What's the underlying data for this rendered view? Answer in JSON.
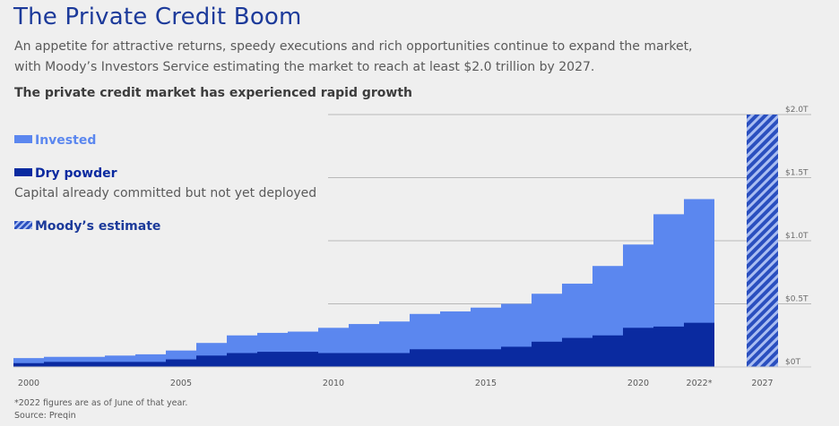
{
  "title": "The Private Credit Boom",
  "subtitle_line1": "An appetite for attractive returns, speedy executions and rich opportunities continue to expand the market,",
  "subtitle_line2": "with Moody’s Investors Service estimating the market to reach at least $2.0 trillion by 2027.",
  "heading": "The private credit market has experienced rapid growth",
  "legend": {
    "invested": "Invested",
    "dry_powder": "Dry powder",
    "dry_powder_note": "Capital already committed but not yet deployed",
    "estimate": "Moody’s estimate"
  },
  "footnote": "*2022 figures are as of June of that year.",
  "source": "Source: Preqin",
  "colors": {
    "invested": "#5b87ef",
    "dry_powder": "#0a2aa0",
    "estimate": "#2a4fbf",
    "title": "#1c3a9a"
  },
  "chart_data": {
    "type": "area",
    "x": [
      "2000",
      "2001",
      "2002",
      "2003",
      "2004",
      "2005",
      "2006",
      "2007",
      "2008",
      "2009",
      "2010",
      "2011",
      "2012",
      "2013",
      "2014",
      "2015",
      "2016",
      "2017",
      "2018",
      "2019",
      "2020",
      "2021",
      "2022*"
    ],
    "series": [
      {
        "name": "Invested",
        "values": [
          0.07,
          0.08,
          0.08,
          0.09,
          0.1,
          0.13,
          0.19,
          0.25,
          0.27,
          0.28,
          0.31,
          0.34,
          0.36,
          0.42,
          0.44,
          0.47,
          0.5,
          0.58,
          0.66,
          0.8,
          0.97,
          1.21,
          1.33
        ]
      },
      {
        "name": "Dry powder",
        "values": [
          0.03,
          0.04,
          0.04,
          0.04,
          0.04,
          0.06,
          0.09,
          0.11,
          0.12,
          0.12,
          0.11,
          0.11,
          0.11,
          0.14,
          0.14,
          0.14,
          0.16,
          0.2,
          0.23,
          0.25,
          0.31,
          0.32,
          0.35
        ]
      }
    ],
    "estimate": {
      "name": "Moody’s estimate",
      "x": "2027",
      "value": 2.0
    },
    "xticks": [
      "2000",
      "2005",
      "2010",
      "2015",
      "2020",
      "2022*",
      "2027"
    ],
    "yticks": [
      "$0T",
      "$0.5T",
      "$1.0T",
      "$1.5T",
      "$2.0T"
    ],
    "ytick_values": [
      0,
      0.5,
      1.0,
      1.5,
      2.0
    ],
    "ylim": [
      0,
      2.0
    ],
    "grid": true,
    "y_axis_position": "right",
    "legend_position": "left",
    "xlabel": "",
    "ylabel": ""
  }
}
